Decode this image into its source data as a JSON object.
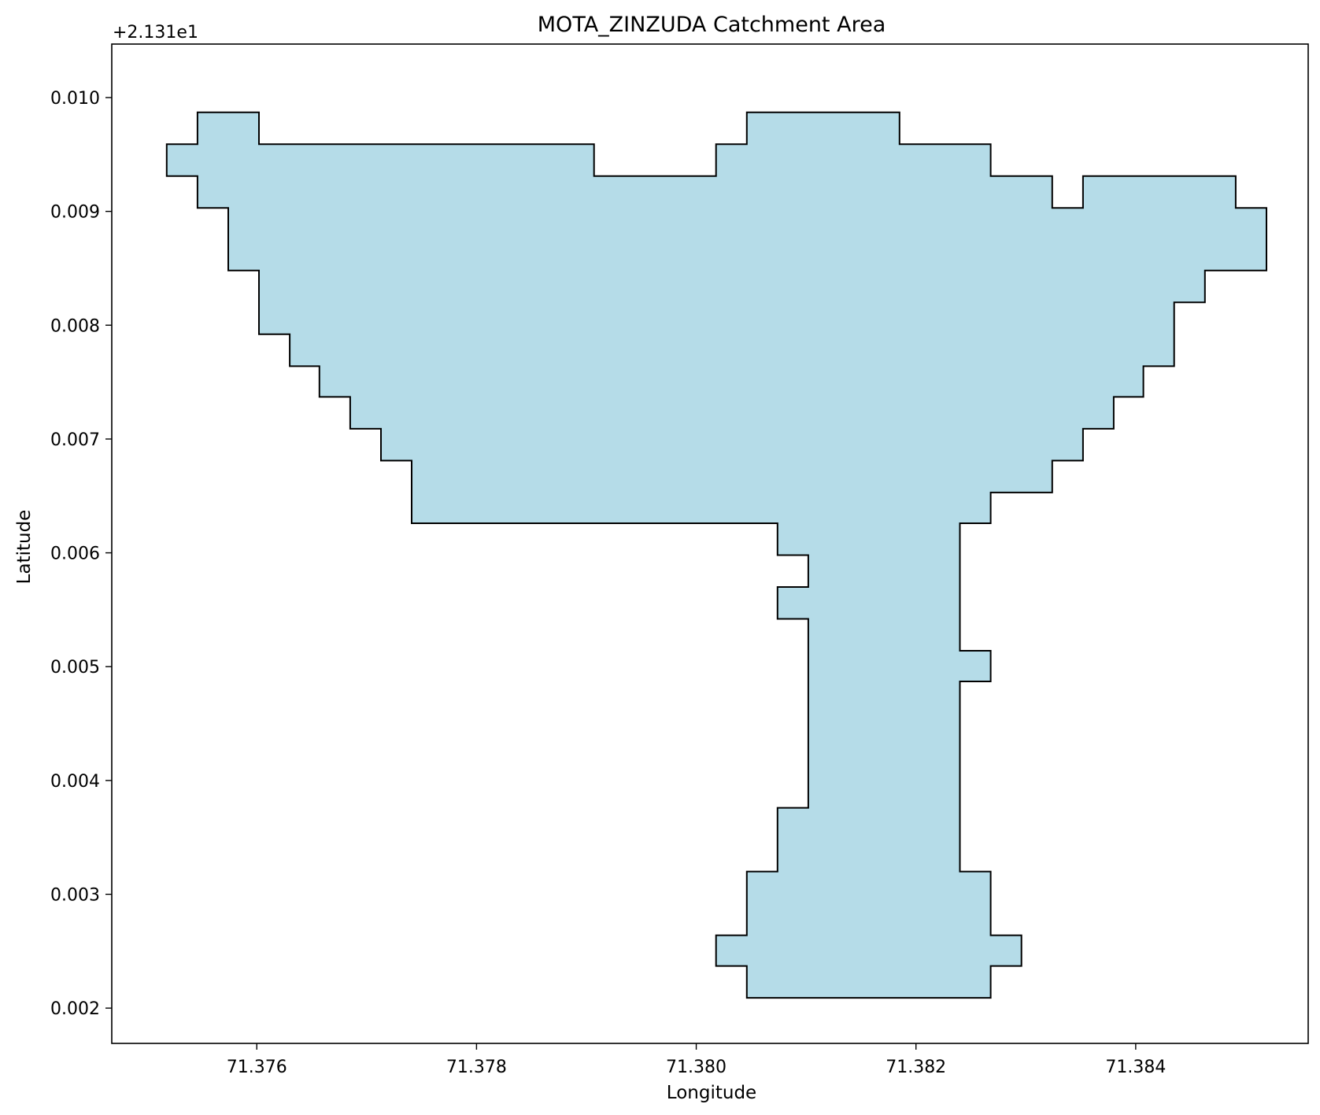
{
  "chart_data": {
    "type": "area",
    "title": "MOTA_ZINZUDA Catchment Area",
    "xlabel": "Longitude",
    "ylabel": "Latitude",
    "y_offset_label": "+2.131e1",
    "xlim": [
      71.37468,
      71.38557
    ],
    "ylim": [
      0.00169,
      0.01047
    ],
    "x_ticks": [
      71.376,
      71.378,
      71.38,
      71.382,
      71.384
    ],
    "x_tick_labels": [
      "71.376",
      "71.378",
      "71.380",
      "71.382",
      "71.384"
    ],
    "y_ticks": [
      0.002,
      0.003,
      0.004,
      0.005,
      0.006,
      0.007,
      0.008,
      0.009,
      0.01
    ],
    "y_tick_labels": [
      "0.002",
      "0.003",
      "0.004",
      "0.005",
      "0.006",
      "0.007",
      "0.008",
      "0.009",
      "0.010"
    ],
    "grid": false,
    "legend": "none",
    "fill_color": "#add8e6",
    "edge_color": "#000000",
    "polygon": [
      [
        71.37518,
        0.00959
      ],
      [
        71.37546,
        0.00959
      ],
      [
        71.37546,
        0.00987
      ],
      [
        71.37602,
        0.00987
      ],
      [
        71.37602,
        0.00959
      ],
      [
        71.37907,
        0.00959
      ],
      [
        71.37907,
        0.00931
      ],
      [
        71.38018,
        0.00931
      ],
      [
        71.38018,
        0.00959
      ],
      [
        71.38046,
        0.00959
      ],
      [
        71.38046,
        0.00987
      ],
      [
        71.38185,
        0.00987
      ],
      [
        71.38185,
        0.00959
      ],
      [
        71.38268,
        0.00959
      ],
      [
        71.38268,
        0.00931
      ],
      [
        71.38324,
        0.00931
      ],
      [
        71.38324,
        0.00903
      ],
      [
        71.38352,
        0.00903
      ],
      [
        71.38352,
        0.00931
      ],
      [
        71.38491,
        0.00931
      ],
      [
        71.38491,
        0.00903
      ],
      [
        71.38519,
        0.00903
      ],
      [
        71.38519,
        0.00848
      ],
      [
        71.38463,
        0.00848
      ],
      [
        71.38463,
        0.0082
      ],
      [
        71.38435,
        0.0082
      ],
      [
        71.38435,
        0.00764
      ],
      [
        71.38407,
        0.00764
      ],
      [
        71.38407,
        0.00737
      ],
      [
        71.3838,
        0.00737
      ],
      [
        71.3838,
        0.00709
      ],
      [
        71.38352,
        0.00709
      ],
      [
        71.38352,
        0.00681
      ],
      [
        71.38324,
        0.00681
      ],
      [
        71.38324,
        0.00653
      ],
      [
        71.38268,
        0.00653
      ],
      [
        71.38268,
        0.00626
      ],
      [
        71.3824,
        0.00626
      ],
      [
        71.3824,
        0.00514
      ],
      [
        71.38268,
        0.00514
      ],
      [
        71.38268,
        0.00487
      ],
      [
        71.3824,
        0.00487
      ],
      [
        71.3824,
        0.0032
      ],
      [
        71.38268,
        0.0032
      ],
      [
        71.38268,
        0.00264
      ],
      [
        71.38296,
        0.00264
      ],
      [
        71.38296,
        0.00237
      ],
      [
        71.38268,
        0.00237
      ],
      [
        71.38268,
        0.00209
      ],
      [
        71.38046,
        0.00209
      ],
      [
        71.38046,
        0.00237
      ],
      [
        71.38018,
        0.00237
      ],
      [
        71.38018,
        0.00264
      ],
      [
        71.38046,
        0.00264
      ],
      [
        71.38046,
        0.0032
      ],
      [
        71.38074,
        0.0032
      ],
      [
        71.38074,
        0.00376
      ],
      [
        71.38102,
        0.00376
      ],
      [
        71.38102,
        0.00542
      ],
      [
        71.38074,
        0.00542
      ],
      [
        71.38074,
        0.0057
      ],
      [
        71.38102,
        0.0057
      ],
      [
        71.38102,
        0.00598
      ],
      [
        71.38074,
        0.00598
      ],
      [
        71.38074,
        0.00626
      ],
      [
        71.37741,
        0.00626
      ],
      [
        71.37741,
        0.00681
      ],
      [
        71.37713,
        0.00681
      ],
      [
        71.37713,
        0.00709
      ],
      [
        71.37685,
        0.00709
      ],
      [
        71.37685,
        0.00737
      ],
      [
        71.37657,
        0.00737
      ],
      [
        71.37657,
        0.00764
      ],
      [
        71.3763,
        0.00764
      ],
      [
        71.3763,
        0.00792
      ],
      [
        71.37602,
        0.00792
      ],
      [
        71.37602,
        0.00848
      ],
      [
        71.37574,
        0.00848
      ],
      [
        71.37574,
        0.00903
      ],
      [
        71.37546,
        0.00903
      ],
      [
        71.37546,
        0.00931
      ],
      [
        71.37518,
        0.00931
      ]
    ]
  }
}
